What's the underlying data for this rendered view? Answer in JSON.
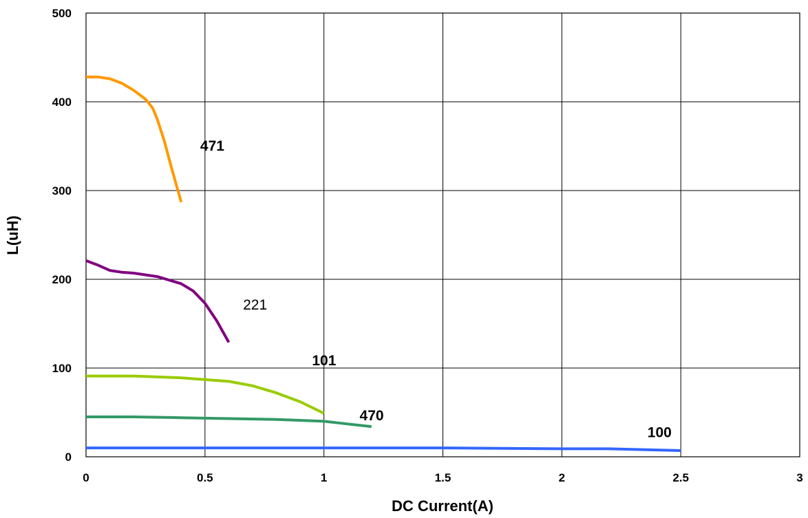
{
  "chart_data": {
    "type": "line",
    "title": "",
    "xlabel": "DC Current(A)",
    "ylabel": "L(uH)",
    "xlim": [
      0,
      3
    ],
    "ylim": [
      0,
      500
    ],
    "x_ticks": [
      "0",
      "0.5",
      "1",
      "1.5",
      "2",
      "2.5",
      "3"
    ],
    "y_ticks": [
      "0",
      "100",
      "200",
      "300",
      "400",
      "500"
    ],
    "grid": true,
    "series": [
      {
        "name": "471",
        "color": "#ff9900",
        "label_bold": true,
        "label_at": [
          0.48,
          345
        ],
        "points": [
          [
            0,
            428
          ],
          [
            0.05,
            428
          ],
          [
            0.1,
            426
          ],
          [
            0.15,
            421
          ],
          [
            0.2,
            413
          ],
          [
            0.25,
            403
          ],
          [
            0.28,
            393
          ],
          [
            0.3,
            380
          ],
          [
            0.33,
            355
          ],
          [
            0.36,
            325
          ],
          [
            0.4,
            287
          ]
        ]
      },
      {
        "name": "221",
        "color": "#800080",
        "label_bold": false,
        "label_at": [
          0.66,
          166
        ],
        "points": [
          [
            0,
            221
          ],
          [
            0.05,
            216
          ],
          [
            0.1,
            210
          ],
          [
            0.15,
            208
          ],
          [
            0.2,
            207
          ],
          [
            0.3,
            203
          ],
          [
            0.4,
            195
          ],
          [
            0.45,
            187
          ],
          [
            0.5,
            173
          ],
          [
            0.55,
            153
          ],
          [
            0.6,
            129
          ]
        ]
      },
      {
        "name": "101",
        "color": "#99cc00",
        "label_bold": true,
        "label_at": [
          0.95,
          103
        ],
        "points": [
          [
            0,
            91
          ],
          [
            0.2,
            91
          ],
          [
            0.4,
            89
          ],
          [
            0.6,
            85
          ],
          [
            0.7,
            80
          ],
          [
            0.8,
            72
          ],
          [
            0.9,
            62
          ],
          [
            1.0,
            49
          ]
        ]
      },
      {
        "name": "470",
        "color": "#339966",
        "label_bold": true,
        "label_at": [
          1.15,
          41
        ],
        "points": [
          [
            0,
            45
          ],
          [
            0.2,
            45
          ],
          [
            0.4,
            44
          ],
          [
            0.6,
            43
          ],
          [
            0.8,
            42
          ],
          [
            1.0,
            40
          ],
          [
            1.1,
            37
          ],
          [
            1.2,
            34
          ]
        ]
      },
      {
        "name": "100",
        "color": "#3366ff",
        "label_bold": true,
        "label_at": [
          2.36,
          22
        ],
        "points": [
          [
            0,
            10
          ],
          [
            1.0,
            10
          ],
          [
            1.5,
            10
          ],
          [
            2.0,
            9
          ],
          [
            2.2,
            9
          ],
          [
            2.5,
            7
          ]
        ]
      }
    ]
  }
}
